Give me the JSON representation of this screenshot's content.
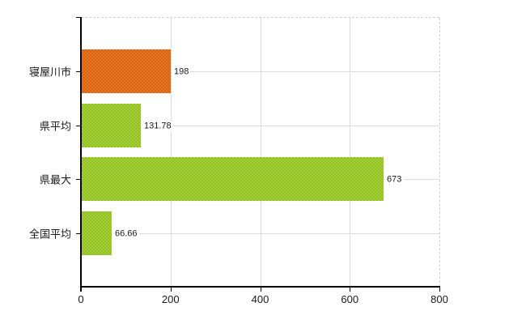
{
  "chart_data": {
    "type": "bar",
    "orientation": "horizontal",
    "title": "",
    "xlabel": "",
    "ylabel": "",
    "categories": [
      "寝屋川市",
      "県平均",
      "県最大",
      "全国平均"
    ],
    "values": [
      198,
      131.78,
      673,
      66.66
    ],
    "value_labels": [
      "198",
      "131.78",
      "673",
      "66.66"
    ],
    "xlim": [
      0,
      800
    ],
    "x_ticks": [
      {
        "value": 0,
        "label": "0"
      },
      {
        "value": 200,
        "label": "200"
      },
      {
        "value": 400,
        "label": "400"
      },
      {
        "value": 600,
        "label": "600"
      },
      {
        "value": 800,
        "label": "800"
      }
    ],
    "grid": true,
    "legend_position": "none",
    "bar_color_roles": [
      "highlight",
      "default",
      "default",
      "default"
    ]
  },
  "colors": {
    "highlight_bar_base": "#e8791e",
    "highlight_bar_dot": "#d55f16",
    "default_bar_base": "#a5ce37",
    "default_bar_dot": "#8fc024",
    "grid_line": "#dcdcdc",
    "axis_line": "#000000",
    "dashed_border": "#d6cfc9",
    "label_text": "#1a1a1a"
  }
}
